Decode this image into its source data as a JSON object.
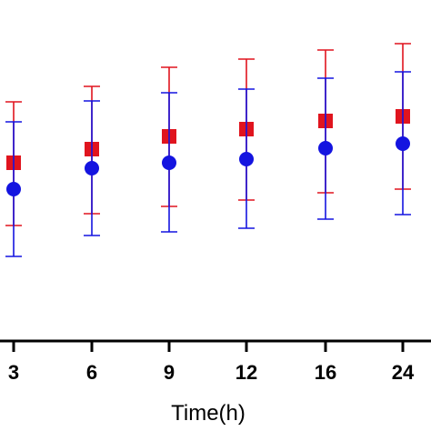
{
  "chart_data": {
    "type": "scatter",
    "xlabel": "Time(h)",
    "categories": [
      "3",
      "6",
      "9",
      "12",
      "16",
      "24"
    ],
    "series": [
      {
        "marker": "square",
        "color": "#e0141e",
        "values": [
          179,
          164,
          150,
          142,
          133,
          128
        ],
        "err_upper": [
          112,
          95,
          74,
          65,
          55,
          48
        ],
        "err_lower": [
          248,
          235,
          227,
          220,
          212,
          208
        ]
      },
      {
        "marker": "circle",
        "color": "#1414e0",
        "values": [
          208,
          185,
          179,
          175,
          163,
          158
        ],
        "err_upper": [
          134,
          111,
          102,
          98,
          86,
          79
        ],
        "err_lower": [
          282,
          259,
          255,
          251,
          241,
          236
        ]
      }
    ]
  }
}
